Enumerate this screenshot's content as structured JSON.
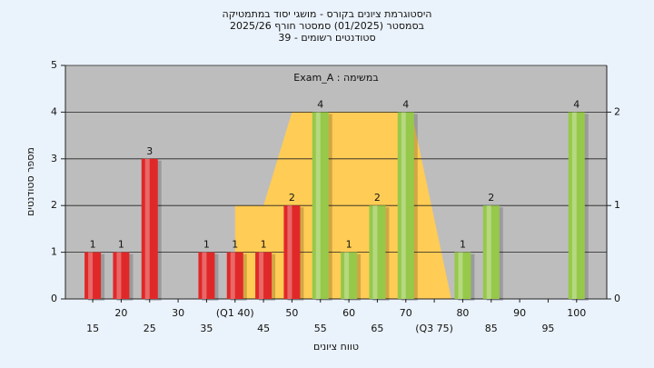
{
  "chart_data": {
    "type": "bar",
    "title": "היסטוגרמת ציונים בקורס - מושגי יסוד במתמטיקה",
    "subtitle": "בסמסטר  (01/2025)  סמסטר חורף 2025/26",
    "subtitle2": "סטודנטים רשומים - 39",
    "annotation": "Exam_A : במשימה",
    "xlabel": "טווח ציונים",
    "ylabel": "מספר סטודנטים",
    "xlim": [
      10.2,
      105.3
    ],
    "xticks": [
      15,
      20,
      25,
      30,
      35,
      {
        "value": 40,
        "label": "(Q1 40)"
      },
      45,
      50,
      55,
      60,
      65,
      70,
      {
        "value": 75,
        "label": "(Q3 75)"
      },
      80,
      85,
      90,
      95,
      100
    ],
    "ylim": [
      0,
      5
    ],
    "yticks": [
      0,
      1,
      2,
      3,
      4,
      5
    ],
    "y2lim": [
      0,
      2.5
    ],
    "y2ticks": [
      0,
      1,
      2
    ],
    "grid": true,
    "bars": {
      "x": [
        15,
        20,
        25,
        30,
        35,
        40,
        45,
        50,
        55,
        60,
        65,
        70,
        75,
        80,
        85,
        90,
        95,
        100
      ],
      "values": [
        1,
        1,
        3,
        0,
        1,
        1,
        1,
        2,
        4,
        1,
        2,
        4,
        0,
        1,
        2,
        0,
        0,
        4
      ],
      "colors": [
        "#e02828",
        "#e02828",
        "#e02828",
        "#e02828",
        "#e02828",
        "#e02828",
        "#e02828",
        "#e02828",
        "#96c84a",
        "#96c84a",
        "#96c84a",
        "#96c84a",
        "#96c84a",
        "#96c84a",
        "#96c84a",
        "#96c84a",
        "#96c84a",
        "#96c84a"
      ]
    },
    "area": {
      "axis": "y2",
      "color": "#ffcc55",
      "x": [
        40,
        40,
        45,
        50,
        71,
        78
      ],
      "values": [
        0,
        1,
        1,
        2,
        2,
        0
      ]
    }
  }
}
